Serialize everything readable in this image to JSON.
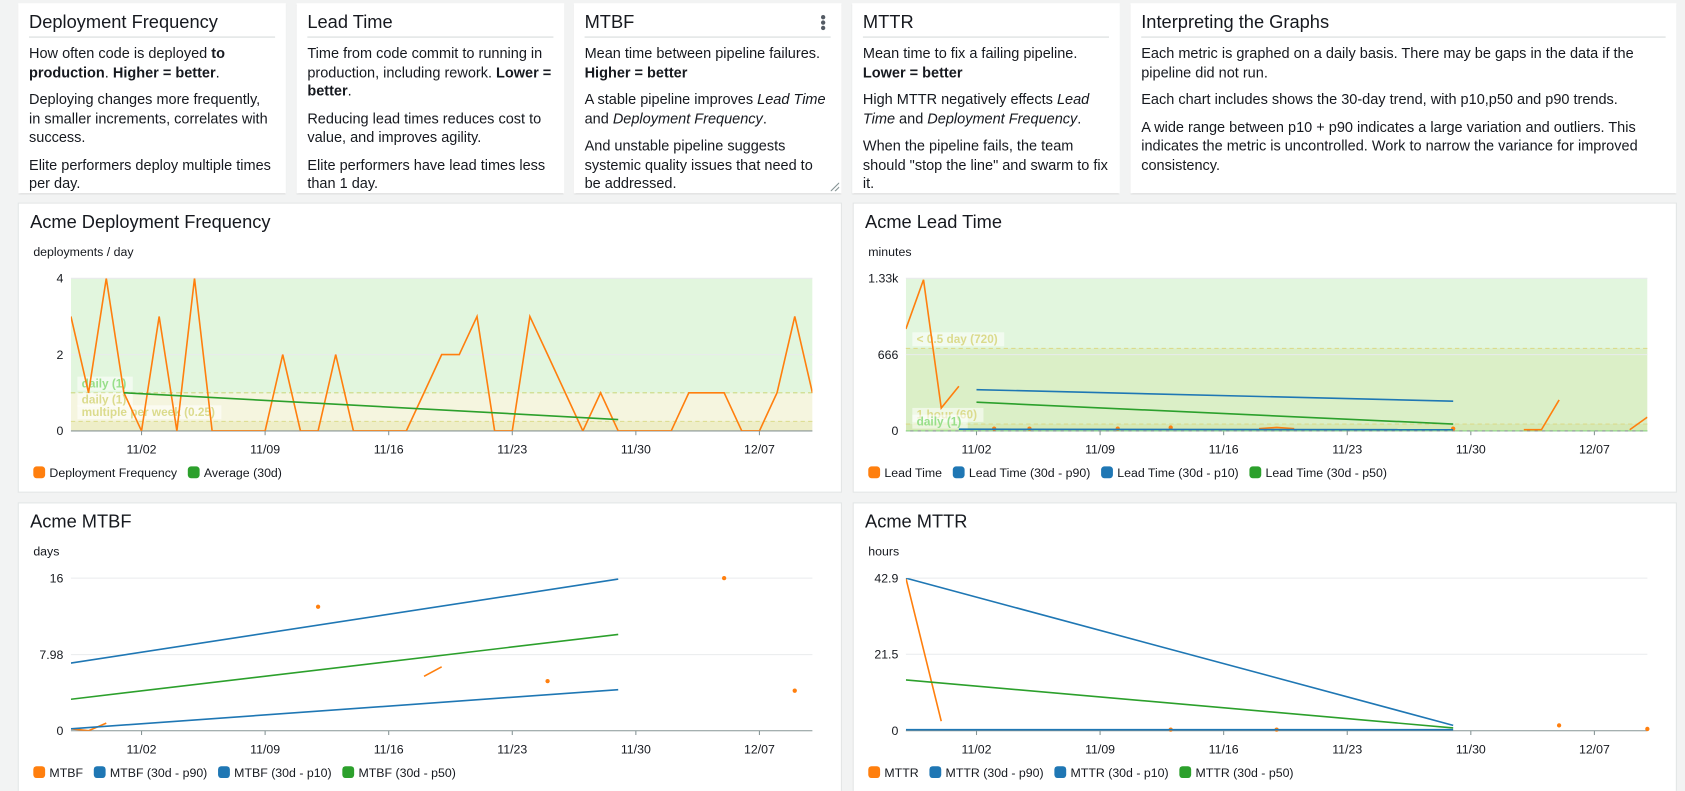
{
  "widgets": [
    {
      "title": "Deployment Frequency",
      "paragraphs": [
        [
          "How often code is deployed ",
          {
            "b": "to production"
          },
          ". ",
          {
            "b": "Higher = better"
          },
          "."
        ],
        [
          "Deploying changes more frequently, in smaller increments, correlates with success."
        ],
        [
          "Elite performers deploy multiple times per day."
        ]
      ]
    },
    {
      "title": "Lead Time",
      "paragraphs": [
        [
          "Time from code commit to running in production, including rework. ",
          {
            "b": "Lower = better"
          },
          "."
        ],
        [
          "Reducing lead times reduces cost to value, and improves agility."
        ],
        [
          "Elite performers have lead times less than 1 day."
        ]
      ]
    },
    {
      "title": "MTBF",
      "paragraphs": [
        [
          "Mean time between pipeline failures. ",
          {
            "b": "Higher = better"
          }
        ],
        [
          "A stable pipeline improves ",
          {
            "i": "Lead Time"
          },
          " and ",
          {
            "i": "Deployment Frequency"
          },
          "."
        ],
        [
          "And unstable pipeline suggests systemic quality issues that need to be addressed."
        ]
      ]
    },
    {
      "title": "MTTR",
      "paragraphs": [
        [
          "Mean time to fix a failing pipeline. ",
          {
            "b": "Lower = better"
          }
        ],
        [
          "High MTTR negatively effects ",
          {
            "i": "Lead Time"
          },
          " and ",
          {
            "i": "Deployment Frequency"
          },
          "."
        ],
        [
          "When the pipeline fails, the team should \"stop the line\" and swarm to fix it."
        ]
      ]
    },
    {
      "title": "Interpreting the Graphs",
      "paragraphs": [
        [
          "Each metric is graphed on a daily basis. There may be gaps in the data if the pipeline did not run."
        ],
        [
          "Each chart includes shows the 30-day trend, with p10,p50 and p90 trends."
        ],
        [
          "A wide range between p10 + p90 indicates a large variation and outliers. This indicates the metric is uncontrolled. Work to narrow the variance for improved consistency."
        ]
      ]
    }
  ],
  "chart_data": [
    {
      "type": "line",
      "title": "Acme Deployment Frequency",
      "y_label": "deployments / day",
      "xlim": [
        "10/29",
        "12/10"
      ],
      "xticks": [
        "11/02",
        "11/09",
        "11/16",
        "11/23",
        "11/30",
        "12/07"
      ],
      "ylim": [
        0,
        4
      ],
      "yticks": [
        0,
        2,
        4
      ],
      "grid": true,
      "annotations": [
        {
          "label": "daily (1)",
          "value": 1,
          "color": "#98df8a",
          "fill": "above"
        },
        {
          "label": "daily (1)",
          "value": 1,
          "color": "#dbdb8d",
          "fill": "below"
        },
        {
          "label": "multiple per week (0.25)",
          "value": 0.25,
          "color": "#dbdb8d",
          "fill": "below"
        }
      ],
      "series": [
        {
          "name": "Deployment Frequency",
          "color": "#ff7f0e",
          "x": [
            "10/29",
            "10/30",
            "10/31",
            "11/01",
            "11/02",
            "11/03",
            "11/04",
            "11/05",
            "11/06",
            "11/07",
            "11/08",
            "11/09",
            "11/10",
            "11/11",
            "11/12",
            "11/13",
            "11/14",
            "11/15",
            "11/16",
            "11/17",
            "11/18",
            "11/19",
            "11/20",
            "11/21",
            "11/22",
            "11/23",
            "11/24",
            "11/25",
            "11/26",
            "11/27",
            "11/28",
            "11/29",
            "11/30",
            "12/01",
            "12/02",
            "12/03",
            "12/04",
            "12/05",
            "12/06",
            "12/07",
            "12/08",
            "12/09",
            "12/10"
          ],
          "values": [
            3,
            1,
            4,
            1,
            0,
            3,
            0,
            4,
            0,
            0,
            0,
            0,
            2,
            0,
            0,
            2,
            0,
            0,
            0,
            0,
            1,
            2,
            2,
            3,
            0,
            0,
            3,
            2,
            1,
            0,
            1,
            0,
            0,
            0,
            0,
            1,
            1,
            1,
            0,
            0,
            1,
            3,
            1
          ]
        },
        {
          "name": "Average (30d)",
          "color": "#2ca02c",
          "x": [
            "11/01",
            "11/29"
          ],
          "values": [
            1.0,
            0.3
          ]
        }
      ]
    },
    {
      "type": "line",
      "title": "Acme Lead Time",
      "y_label": "minutes",
      "xlim": [
        "10/29",
        "12/10"
      ],
      "xticks": [
        "11/02",
        "11/09",
        "11/16",
        "11/23",
        "11/30",
        "12/07"
      ],
      "ylim": [
        0,
        1332
      ],
      "yticks": [
        0,
        666,
        {
          "value": 1332,
          "label": "1.33k"
        }
      ],
      "grid": true,
      "annotations": [
        {
          "label": "< 0.5 day (720)",
          "value": 720,
          "color": "#dbdb8d",
          "fill": "below"
        },
        {
          "label": "1 hour (60)",
          "value": 60,
          "color": "#dbdb8d",
          "fill": "below"
        },
        {
          "label": "daily (1)",
          "value": 1,
          "color": "#98df8a",
          "fill": "above"
        }
      ],
      "series": [
        {
          "name": "Lead Time",
          "color": "#ff7f0e",
          "x": [
            "10/29",
            "10/30",
            "10/31",
            "11/01",
            "11/02",
            "11/03",
            "11/04",
            "11/05",
            "11/06",
            "11/10",
            "11/11",
            "11/13",
            "11/14",
            "11/18",
            "11/19",
            "11/20",
            "11/21",
            "11/29",
            "11/30",
            "12/03",
            "12/04",
            "12/05",
            "12/06",
            "12/09",
            "12/10"
          ],
          "values": [
            890,
            1320,
            200,
            390,
            null,
            20,
            null,
            20,
            null,
            20,
            null,
            30,
            null,
            20,
            30,
            20,
            null,
            20,
            null,
            10,
            10,
            270,
            null,
            10,
            120
          ]
        },
        {
          "name": "Lead Time (30d - p90)",
          "color": "#1f77b4",
          "x": [
            "11/02",
            "11/29"
          ],
          "values": [
            360,
            260
          ]
        },
        {
          "name": "Lead Time (30d - p10)",
          "color": "#1f77b4",
          "x": [
            "11/01",
            "11/29"
          ],
          "values": [
            15,
            10
          ]
        },
        {
          "name": "Lead Time (30d - p50)",
          "color": "#2ca02c",
          "x": [
            "11/02",
            "11/29"
          ],
          "values": [
            250,
            60
          ]
        }
      ]
    },
    {
      "type": "line",
      "title": "Acme MTBF",
      "y_label": "days",
      "xlim": [
        "10/29",
        "12/10"
      ],
      "xticks": [
        "11/02",
        "11/09",
        "11/16",
        "11/23",
        "11/30",
        "12/07"
      ],
      "ylim": [
        0,
        16
      ],
      "yticks": [
        0,
        7.98,
        16
      ],
      "grid": true,
      "annotations": [],
      "series": [
        {
          "name": "MTBF",
          "color": "#ff7f0e",
          "x": [
            "10/29",
            "10/30",
            "10/31",
            "11/01",
            "11/12",
            "11/13",
            "11/18",
            "11/19",
            "11/20",
            "11/25",
            "11/26",
            "12/05",
            "12/06",
            "12/09"
          ],
          "values": [
            0.2,
            0,
            0.8,
            null,
            13,
            null,
            5.7,
            6.7,
            null,
            5.2,
            null,
            16,
            null,
            4.2
          ]
        },
        {
          "name": "MTBF (30d - p90)",
          "color": "#1f77b4",
          "x": [
            "10/29",
            "11/29"
          ],
          "values": [
            7.1,
            15.9
          ]
        },
        {
          "name": "MTBF (30d - p10)",
          "color": "#1f77b4",
          "x": [
            "10/29",
            "11/29"
          ],
          "values": [
            0.2,
            4.3
          ]
        },
        {
          "name": "MTBF (30d - p50)",
          "color": "#2ca02c",
          "x": [
            "10/29",
            "11/29"
          ],
          "values": [
            3.3,
            10.1
          ]
        }
      ]
    },
    {
      "type": "line",
      "title": "Acme MTTR",
      "y_label": "hours",
      "xlim": [
        "10/29",
        "12/10"
      ],
      "xticks": [
        "11/02",
        "11/09",
        "11/16",
        "11/23",
        "11/30",
        "12/07"
      ],
      "ylim": [
        0,
        42.9
      ],
      "yticks": [
        0,
        21.5,
        42.9
      ],
      "grid": true,
      "annotations": [],
      "series": [
        {
          "name": "MTTR",
          "color": "#ff7f0e",
          "x": [
            "10/29",
            "10/30",
            "10/31",
            "11/01",
            "11/13",
            "11/14",
            "11/19",
            "11/20",
            "12/05",
            "12/06",
            "12/10"
          ],
          "values": [
            42.9,
            22.8,
            2.7,
            null,
            0.3,
            null,
            0.3,
            null,
            1.5,
            null,
            0.5
          ]
        },
        {
          "name": "MTTR (30d - p90)",
          "color": "#1f77b4",
          "x": [
            "10/29",
            "11/29"
          ],
          "values": [
            42.9,
            1.5
          ]
        },
        {
          "name": "MTTR (30d - p10)",
          "color": "#1f77b4",
          "x": [
            "10/29",
            "11/29"
          ],
          "values": [
            0.3,
            0.3
          ]
        },
        {
          "name": "MTTR (30d - p50)",
          "color": "#2ca02c",
          "x": [
            "10/29",
            "11/29"
          ],
          "values": [
            14.3,
            0.8
          ]
        }
      ]
    }
  ]
}
